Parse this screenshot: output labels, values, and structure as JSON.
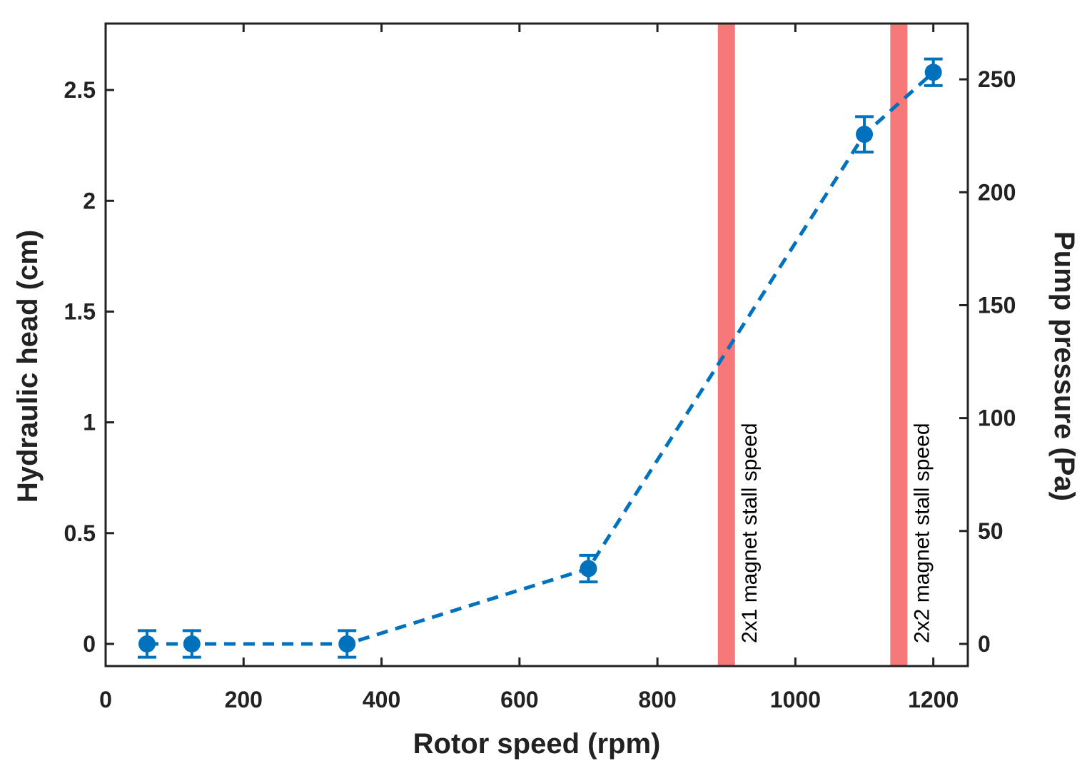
{
  "chart_data": {
    "type": "line",
    "title": "",
    "xlabel": "Rotor speed (rpm)",
    "ylabel": "Hydraulic head (cm)",
    "y2label": "Pump pressure (Pa)",
    "xlim": [
      0,
      1250
    ],
    "ylim": [
      -0.1,
      2.8
    ],
    "y2lim": [
      -9.81,
      274.7
    ],
    "x_ticks": [
      0,
      200,
      400,
      600,
      800,
      1000,
      1200
    ],
    "x_tick_labels": [
      "0",
      "200",
      "400",
      "600",
      "800",
      "1000",
      "1200"
    ],
    "y_ticks": [
      0,
      0.5,
      1,
      1.5,
      2,
      2.5
    ],
    "y_tick_labels": [
      "0",
      "0.5",
      "1",
      "1.5",
      "2",
      "2.5"
    ],
    "y2_ticks": [
      0,
      50,
      100,
      150,
      200,
      250
    ],
    "y2_tick_labels": [
      "0",
      "50",
      "100",
      "150",
      "200",
      "250"
    ],
    "grid": false,
    "series": [
      {
        "name": "Hydraulic head",
        "color": "#0072BD",
        "line_style": "dashed",
        "x": [
          60,
          125,
          350,
          700,
          1100,
          1200
        ],
        "values": [
          0.0,
          0.0,
          0.0,
          0.34,
          2.3,
          2.58
        ],
        "error": [
          0.06,
          0.06,
          0.06,
          0.06,
          0.08,
          0.06
        ]
      }
    ],
    "vertical_bands": [
      {
        "x": 900,
        "width": 24,
        "color": "#F46060",
        "label": "2x1 magnet stall speed"
      },
      {
        "x": 1150,
        "width": 24,
        "color": "#F46060",
        "label": "2x2 magnet stall speed"
      }
    ]
  }
}
